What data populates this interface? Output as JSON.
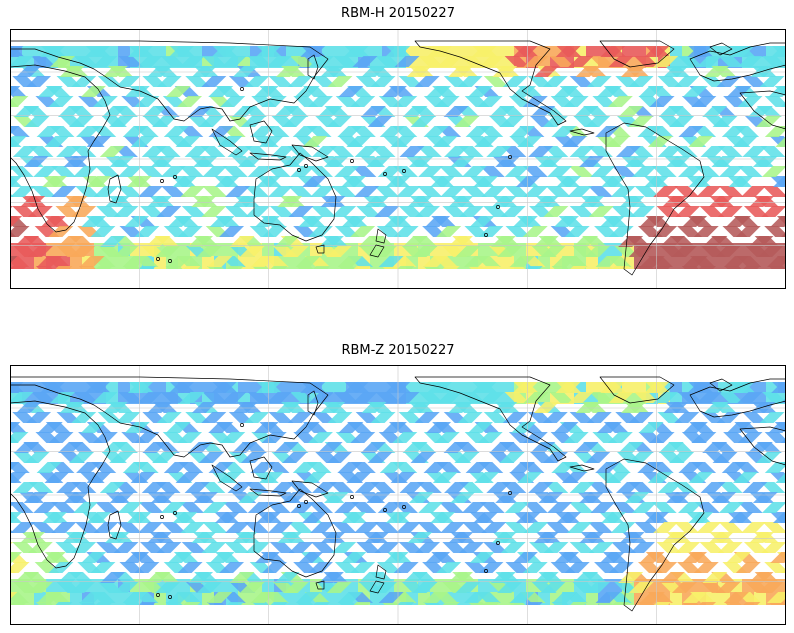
{
  "panels": [
    {
      "title": "RBM-H 20150227",
      "levels": {
        "north_default": 0.3,
        "north_hot_band": 0.7,
        "south_band": 0.62,
        "south_america_south": 0.95,
        "africa_south": 0.85
      }
    },
    {
      "title": "RBM-Z 20150227",
      "levels": {
        "north_default": 0.22,
        "north_hot_band": 0.45,
        "south_band": 0.45,
        "south_america_south": 0.65,
        "africa_south": 0.48
      }
    }
  ],
  "colors": {
    "colormap": [
      "#5b5bf0",
      "#5aa6f5",
      "#5fe0e8",
      "#a8f58a",
      "#f7f06a",
      "#f8a85a",
      "#e85a5a",
      "#b55a5a"
    ],
    "coastline": "#000000",
    "grid": "#c8c8c8",
    "frame": "#000000"
  }
}
